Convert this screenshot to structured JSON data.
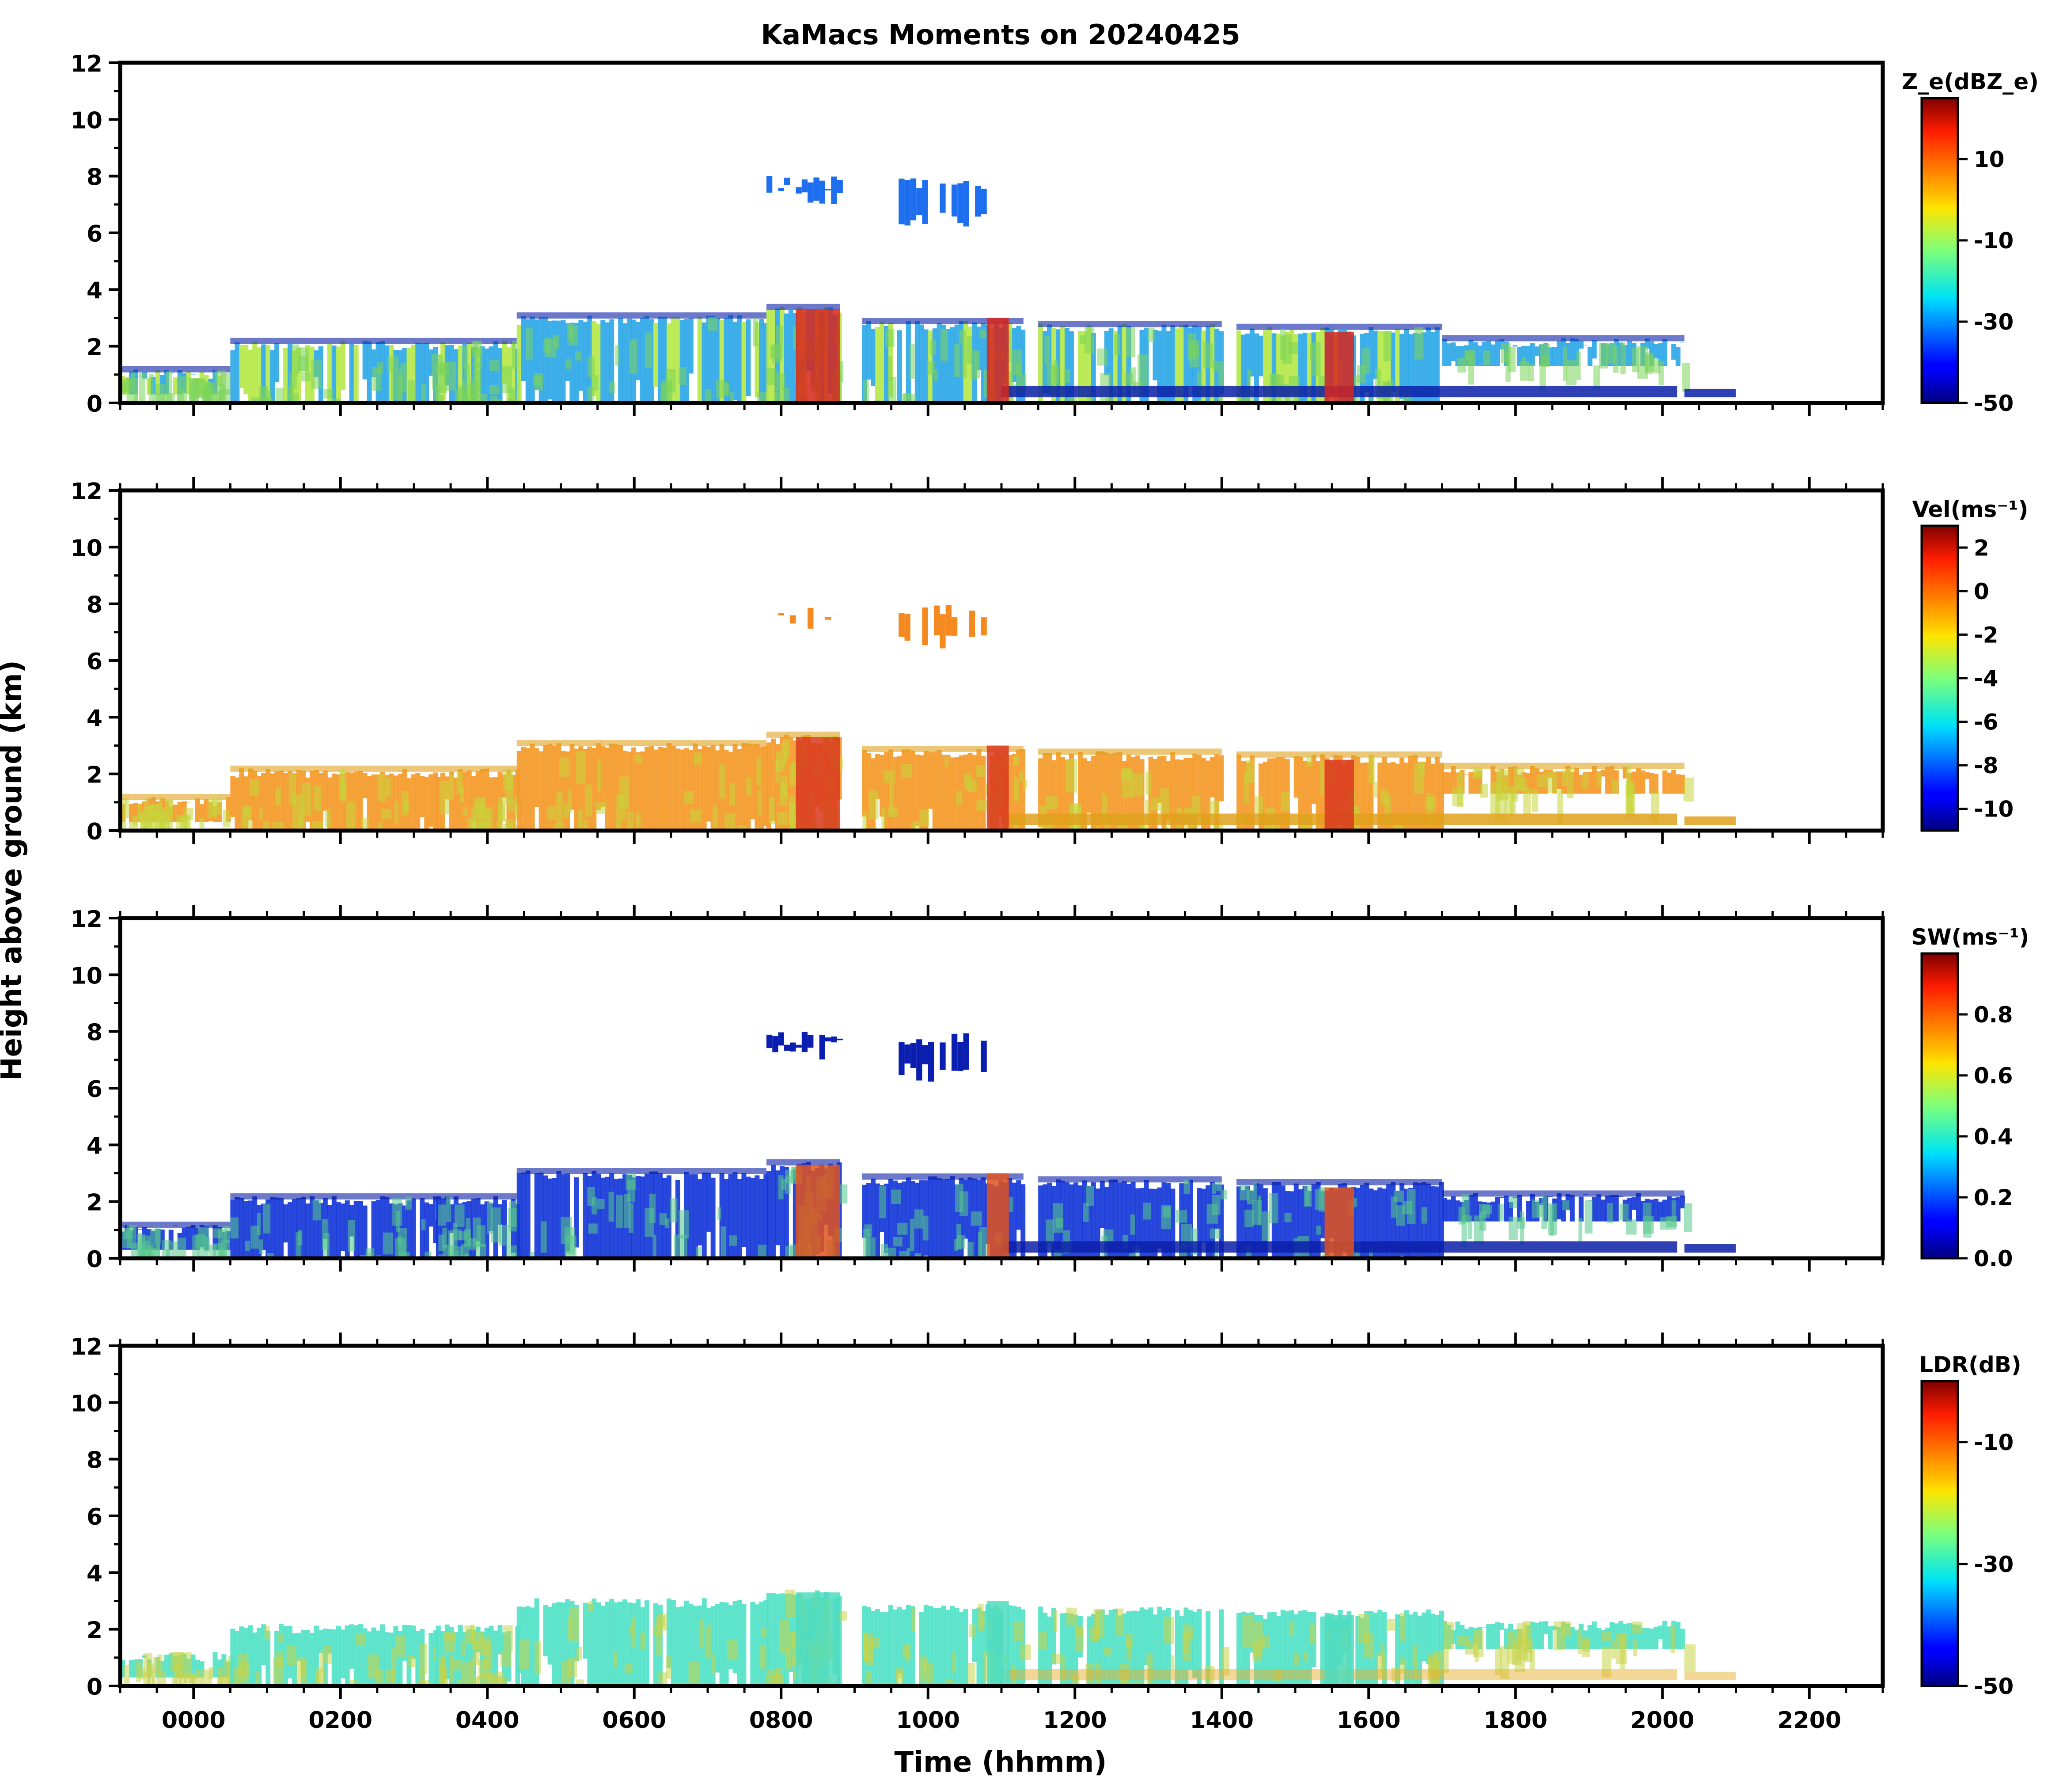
{
  "figure": {
    "title": "KaMacs Moments on 20240425",
    "ylabel": "Height above ground (km)",
    "xlabel": "Time (hhmm)"
  },
  "chart_data": [
    {
      "type": "heatmap",
      "name": "reflectivity",
      "title": "KaMacs Moments on 20240425",
      "colorbar_label": "Z_e(dBZ_e)",
      "colorbar_ticks": [
        "10",
        "-10",
        "-30",
        "-50"
      ],
      "colorbar_tick_values": [
        10,
        -10,
        -30,
        -50
      ],
      "clim": [
        -50,
        25
      ],
      "xlim": [
        -100,
        2300
      ],
      "ylim": [
        0,
        12
      ],
      "y_ticks": [
        "0",
        "2",
        "4",
        "6",
        "8",
        "10",
        "12"
      ],
      "x_ticks": [
        "0000",
        "0200",
        "0400",
        "0600",
        "0800",
        "1000",
        "1200",
        "1400",
        "1600",
        "1800",
        "2000",
        "2200"
      ],
      "colors": {
        "upper": "#1e6ff0",
        "layer": "#2ea8e6",
        "low": "#0a1fa8",
        "core": "#d8261b",
        "spot": "#7bd35a"
      }
    },
    {
      "type": "heatmap",
      "name": "velocity",
      "colorbar_label": "Vel(ms⁻¹)",
      "colorbar_ticks": [
        "2",
        "0",
        "-2",
        "-4",
        "-6",
        "-8",
        "-10"
      ],
      "colorbar_tick_values": [
        2,
        0,
        -2,
        -4,
        -6,
        -8,
        -10
      ],
      "clim": [
        -11,
        3
      ],
      "xlim": [
        -100,
        2300
      ],
      "ylim": [
        0,
        12
      ],
      "y_ticks": [
        "0",
        "2",
        "4",
        "6",
        "8",
        "10",
        "12"
      ],
      "x_ticks": [
        "0000",
        "0200",
        "0400",
        "0600",
        "0800",
        "1000",
        "1200",
        "1400",
        "1600",
        "1800",
        "2000",
        "2200"
      ],
      "colors": {
        "upper": "#f48a1f",
        "layer": "#f49a2a",
        "low": "#e0a11c",
        "core": "#d9381f",
        "spot": "#c7d63a"
      }
    },
    {
      "type": "heatmap",
      "name": "spectrum_width",
      "colorbar_label": "SW(ms⁻¹)",
      "colorbar_ticks": [
        "0.8",
        "0.6",
        "0.4",
        "0.2",
        "0.0"
      ],
      "colorbar_tick_values": [
        0.8,
        0.6,
        0.4,
        0.2,
        0.0
      ],
      "clim": [
        0.0,
        1.0
      ],
      "xlim": [
        -100,
        2300
      ],
      "ylim": [
        0,
        12
      ],
      "y_ticks": [
        "0",
        "2",
        "4",
        "6",
        "8",
        "10",
        "12"
      ],
      "x_ticks": [
        "0000",
        "0200",
        "0400",
        "0600",
        "0800",
        "1000",
        "1200",
        "1400",
        "1600",
        "1800",
        "2000",
        "2200"
      ],
      "colors": {
        "upper": "#0a1fb0",
        "layer": "#1637d8",
        "low": "#0a1fa8",
        "core": "#e0531f",
        "spot": "#55c88a"
      }
    },
    {
      "type": "heatmap",
      "name": "ldr",
      "colorbar_label": "LDR(dB)",
      "colorbar_ticks": [
        "-10",
        "-30",
        "-50"
      ],
      "colorbar_tick_values": [
        -10,
        -30,
        -50
      ],
      "clim": [
        -50,
        0
      ],
      "xlim": [
        -100,
        2300
      ],
      "ylim": [
        0,
        12
      ],
      "y_ticks": [
        "0",
        "2",
        "4",
        "6",
        "8",
        "10",
        "12"
      ],
      "x_ticks": [
        "0000",
        "0200",
        "0400",
        "0600",
        "0800",
        "1000",
        "1200",
        "1400",
        "1600",
        "1800",
        "2000",
        "2200"
      ],
      "colors": {
        "upper": "#ffffff",
        "layer": "#52e2c8",
        "low": "#e6b030",
        "core": "#4fdcc0",
        "spot": "#c8d448"
      }
    }
  ],
  "cloud_features": {
    "upper_clouds": [
      {
        "t0": 780,
        "t1": 880,
        "base": 7.0,
        "top": 8.0
      },
      {
        "t0": 960,
        "t1": 1080,
        "base": 6.2,
        "top": 8.0
      }
    ],
    "main_layer": [
      {
        "t0": -100,
        "t1": 50,
        "top": 1.2,
        "base": 0.3
      },
      {
        "t0": 50,
        "t1": 330,
        "top": 2.2,
        "base": 0.0
      },
      {
        "t0": 330,
        "t1": 440,
        "top": 2.2,
        "base": 0.0
      },
      {
        "t0": 440,
        "t1": 780,
        "top": 3.1,
        "base": 0.0
      },
      {
        "t0": 780,
        "t1": 880,
        "top": 3.4,
        "base": 0.0
      },
      {
        "t0": 910,
        "t1": 1130,
        "top": 2.9,
        "base": 0.0
      },
      {
        "t0": 1150,
        "t1": 1400,
        "top": 2.8,
        "base": 0.0
      },
      {
        "t0": 1420,
        "t1": 1700,
        "top": 2.7,
        "base": 0.0
      },
      {
        "t0": 1700,
        "t1": 2030,
        "top": 2.3,
        "base": 1.3
      }
    ],
    "low_layer": [
      {
        "t0": 1100,
        "t1": 2020,
        "top": 0.6,
        "base": 0.2
      },
      {
        "t0": 2030,
        "t1": 2100,
        "top": 0.5,
        "base": 0.2
      }
    ],
    "cores": [
      {
        "t0": 820,
        "t1": 880,
        "top": 3.3,
        "base": 0.0
      },
      {
        "t0": 1080,
        "t1": 1110,
        "top": 3.0,
        "base": 0.0
      },
      {
        "t0": 1540,
        "t1": 1580,
        "top": 2.5,
        "base": 0.0
      }
    ]
  }
}
